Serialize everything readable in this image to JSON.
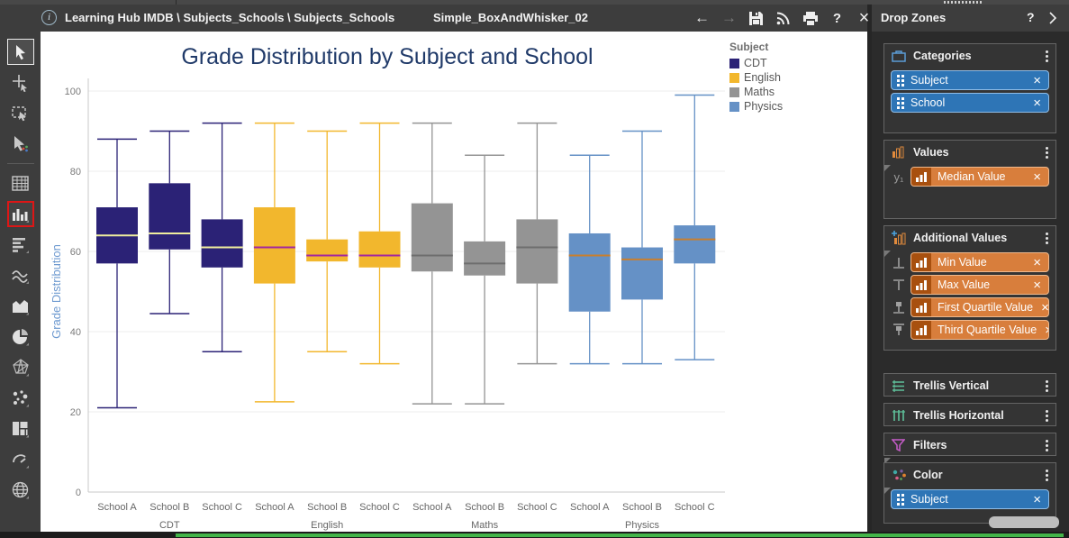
{
  "window": {
    "breadcrumb": "Learning Hub IMDB \\ Subjects_Schools \\ Subjects_Schools",
    "doc_title": "Simple_BoxAndWhisker_02",
    "help_label": "?",
    "close_label": "×"
  },
  "legend": {
    "title": "Subject",
    "items": [
      {
        "label": "CDT",
        "color": "#2b2276"
      },
      {
        "label": "English",
        "color": "#f2b72d"
      },
      {
        "label": "Maths",
        "color": "#949494"
      },
      {
        "label": "Physics",
        "color": "#6591c6"
      }
    ]
  },
  "chart_data": {
    "type": "boxplot",
    "title": "Grade Distribution by Subject and School",
    "ylabel": "Grade Distribution",
    "ylim": [
      0,
      100
    ],
    "yticks": [
      0,
      20,
      40,
      60,
      80,
      100
    ],
    "grid": true,
    "groups": [
      "CDT",
      "English",
      "Maths",
      "Physics"
    ],
    "schools": [
      "School A",
      "School B",
      "School C"
    ],
    "colors": {
      "CDT": "#2b2276",
      "English": "#f2b72d",
      "Maths": "#949494",
      "Physics": "#6591c6"
    },
    "median_colors": {
      "CDT": "#f0ee9e",
      "English": "#a2289e",
      "Maths": "#6e6e6e",
      "Physics": "#c87f2f"
    },
    "series": [
      {
        "subject": "CDT",
        "school": "School A",
        "min": 21,
        "q1": 57,
        "median": 64,
        "q3": 71,
        "max": 88
      },
      {
        "subject": "CDT",
        "school": "School B",
        "min": 44.5,
        "q1": 60.5,
        "median": 64.5,
        "q3": 77,
        "max": 90
      },
      {
        "subject": "CDT",
        "school": "School C",
        "min": 35,
        "q1": 56,
        "median": 61,
        "q3": 68,
        "max": 92
      },
      {
        "subject": "English",
        "school": "School A",
        "min": 22.5,
        "q1": 52,
        "median": 61,
        "q3": 71,
        "max": 92
      },
      {
        "subject": "English",
        "school": "School B",
        "min": 35,
        "q1": 57.5,
        "median": 59,
        "q3": 63,
        "max": 90
      },
      {
        "subject": "English",
        "school": "School C",
        "min": 32,
        "q1": 56,
        "median": 59,
        "q3": 65,
        "max": 92
      },
      {
        "subject": "Maths",
        "school": "School A",
        "min": 22,
        "q1": 55,
        "median": 59,
        "q3": 72,
        "max": 92
      },
      {
        "subject": "Maths",
        "school": "School B",
        "min": 22,
        "q1": 54,
        "median": 57,
        "q3": 62.5,
        "max": 84
      },
      {
        "subject": "Maths",
        "school": "School C",
        "min": 32,
        "q1": 52,
        "median": 61,
        "q3": 68,
        "max": 92
      },
      {
        "subject": "Physics",
        "school": "School A",
        "min": 32,
        "q1": 45,
        "median": 59,
        "q3": 64.5,
        "max": 84
      },
      {
        "subject": "Physics",
        "school": "School B",
        "min": 32,
        "q1": 48,
        "median": 58,
        "q3": 61,
        "max": 90
      },
      {
        "subject": "Physics",
        "school": "School C",
        "min": 33,
        "q1": 57,
        "median": 63,
        "q3": 66.5,
        "max": 99
      }
    ]
  },
  "drop_zones": {
    "title": "Drop Zones",
    "help_label": "?",
    "sections": [
      {
        "label": "Categories",
        "pills": [
          {
            "label": "Subject"
          },
          {
            "label": "School"
          }
        ]
      },
      {
        "label": "Values",
        "rows": [
          {
            "prefix": "y₁",
            "pill": "Median Value"
          }
        ]
      },
      {
        "label": "Additional Values",
        "rows": [
          {
            "pill": "Min Value"
          },
          {
            "pill": "Max Value"
          },
          {
            "pill": "First Quartile Value"
          },
          {
            "pill": "Third Quartile Value"
          }
        ]
      },
      {
        "label": "Trellis Vertical"
      },
      {
        "label": "Trellis Horizontal"
      },
      {
        "label": "Filters"
      },
      {
        "label": "Color",
        "pills": [
          {
            "label": "Subject"
          }
        ]
      }
    ]
  }
}
